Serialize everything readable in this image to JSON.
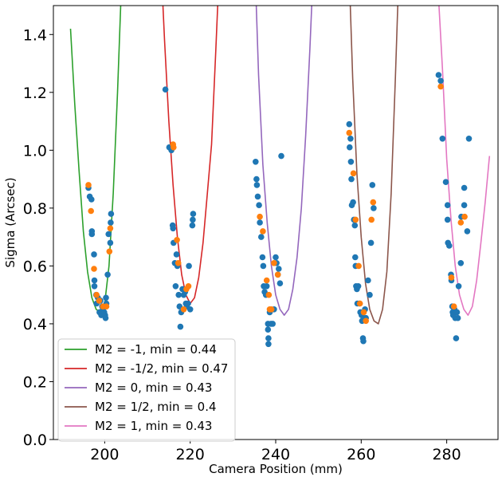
{
  "chart_data": {
    "type": "scatter",
    "title": "",
    "xlabel": "Camera Position (mm)",
    "ylabel": "Sigma (Arcsec)",
    "xlim": [
      188,
      292
    ],
    "ylim": [
      0.0,
      1.5
    ],
    "x_ticks": [
      200,
      220,
      240,
      260,
      280
    ],
    "y_ticks": [
      0.0,
      0.2,
      0.4,
      0.6,
      0.8,
      1.0,
      1.2,
      1.4
    ],
    "x_tick_labels": [
      "200",
      "220",
      "240",
      "260",
      "280"
    ],
    "y_tick_labels": [
      "0.0",
      "0.2",
      "0.4",
      "0.6",
      "0.8",
      "1.0",
      "1.2",
      "1.4"
    ],
    "grid": false,
    "legend_position": "lower-left",
    "fit_series": [
      {
        "name": "M2 = -1, min = 0.44",
        "color": "#2ca02c",
        "x": [
          192.0,
          193.0,
          194.0,
          195.0,
          196.0,
          197.0,
          198.0,
          199.0,
          200.0,
          201.0,
          202.0,
          203.0,
          204.0
        ],
        "y": [
          1.42,
          1.16,
          0.93,
          0.72,
          0.58,
          0.49,
          0.45,
          0.44,
          0.47,
          0.6,
          0.85,
          1.2,
          1.6
        ]
      },
      {
        "name": "M2 = -1/2, min = 0.47",
        "color": "#d62728",
        "x": [
          213.0,
          214.0,
          215.0,
          216.0,
          217.0,
          218.0,
          219.0,
          220.0,
          221.0,
          222.0,
          223.0,
          224.0,
          225.0,
          226.0,
          227.0
        ],
        "y": [
          1.7,
          1.38,
          1.1,
          0.88,
          0.7,
          0.57,
          0.5,
          0.47,
          0.49,
          0.56,
          0.68,
          0.85,
          1.02,
          1.35,
          1.7
        ]
      },
      {
        "name": "M2 = 0, min = 0.43",
        "color": "#9467bd",
        "x": [
          235.0,
          236.0,
          237.0,
          238.0,
          239.0,
          240.0,
          241.0,
          242.0,
          243.0,
          244.0,
          245.0,
          246.0,
          247.0,
          248.0,
          249.0
        ],
        "y": [
          1.7,
          1.26,
          0.95,
          0.75,
          0.6,
          0.5,
          0.45,
          0.43,
          0.45,
          0.52,
          0.63,
          0.8,
          1.05,
          1.35,
          1.7
        ]
      },
      {
        "name": "M2 = 1/2, min = 0.4",
        "color": "#8c564b",
        "x": [
          257.0,
          258.0,
          259.0,
          260.0,
          261.0,
          262.0,
          263.0,
          264.0,
          265.0,
          266.0,
          267.0,
          268.0,
          269.0
        ],
        "y": [
          1.7,
          1.25,
          0.92,
          0.7,
          0.54,
          0.45,
          0.41,
          0.4,
          0.45,
          0.58,
          0.85,
          1.25,
          1.7
        ]
      },
      {
        "name": "M2 = 1, min = 0.43",
        "color": "#e377c2",
        "x": [
          278.0,
          279.0,
          280.0,
          281.0,
          282.0,
          283.0,
          284.0,
          285.0,
          286.0,
          287.0,
          288.0,
          289.0,
          290.0
        ],
        "y": [
          1.55,
          1.28,
          0.97,
          0.76,
          0.6,
          0.5,
          0.45,
          0.43,
          0.46,
          0.55,
          0.68,
          0.82,
          0.98
        ]
      }
    ],
    "scatter_series": [
      {
        "color": "#1f77b4",
        "points": [
          [
            196.2,
            0.87
          ],
          [
            196.5,
            0.84
          ],
          [
            196.9,
            0.83
          ],
          [
            197.0,
            0.72
          ],
          [
            197.0,
            0.71
          ],
          [
            197.5,
            0.64
          ],
          [
            197.6,
            0.55
          ],
          [
            197.6,
            0.53
          ],
          [
            198.0,
            0.5
          ],
          [
            198.1,
            0.47
          ],
          [
            198.4,
            0.49
          ],
          [
            198.8,
            0.44
          ],
          [
            199.0,
            0.48
          ],
          [
            199.2,
            0.43
          ],
          [
            199.4,
            0.46
          ],
          [
            199.6,
            0.45
          ],
          [
            199.9,
            0.44
          ],
          [
            200.1,
            0.43
          ],
          [
            200.2,
            0.42
          ],
          [
            200.3,
            0.49
          ],
          [
            200.4,
            0.47
          ],
          [
            200.7,
            0.57
          ],
          [
            200.9,
            0.71
          ],
          [
            201.3,
            0.68
          ],
          [
            201.4,
            0.75
          ],
          [
            201.5,
            0.78
          ],
          [
            214.2,
            1.21
          ],
          [
            215.1,
            1.01
          ],
          [
            215.6,
            1.0
          ],
          [
            215.9,
            0.74
          ],
          [
            216.0,
            0.73
          ],
          [
            216.1,
            0.68
          ],
          [
            216.4,
            0.61
          ],
          [
            216.6,
            0.53
          ],
          [
            216.8,
            0.64
          ],
          [
            217.0,
            0.6
          ],
          [
            217.3,
            0.5
          ],
          [
            217.5,
            0.46
          ],
          [
            217.7,
            0.39
          ],
          [
            217.9,
            0.44
          ],
          [
            218.2,
            0.52
          ],
          [
            218.5,
            0.5
          ],
          [
            218.8,
            0.51
          ],
          [
            219.0,
            0.47
          ],
          [
            219.2,
            0.46
          ],
          [
            219.5,
            0.47
          ],
          [
            219.7,
            0.6
          ],
          [
            220.0,
            0.45
          ],
          [
            220.5,
            0.74
          ],
          [
            220.7,
            0.78
          ],
          [
            220.6,
            0.76
          ],
          [
            235.3,
            0.96
          ],
          [
            235.5,
            0.9
          ],
          [
            235.6,
            0.88
          ],
          [
            235.8,
            0.84
          ],
          [
            236.1,
            0.81
          ],
          [
            236.3,
            0.75
          ],
          [
            236.6,
            0.7
          ],
          [
            236.9,
            0.63
          ],
          [
            237.1,
            0.6
          ],
          [
            237.2,
            0.53
          ],
          [
            237.4,
            0.51
          ],
          [
            237.7,
            0.5
          ],
          [
            237.9,
            0.53
          ],
          [
            238.2,
            0.4
          ],
          [
            238.2,
            0.38
          ],
          [
            238.3,
            0.35
          ],
          [
            238.3,
            0.33
          ],
          [
            238.6,
            0.44
          ],
          [
            238.9,
            0.4
          ],
          [
            239.3,
            0.4
          ],
          [
            239.6,
            0.45
          ],
          [
            240.0,
            0.63
          ],
          [
            240.2,
            0.61
          ],
          [
            240.5,
            0.57
          ],
          [
            240.7,
            0.59
          ],
          [
            241.0,
            0.54
          ],
          [
            241.3,
            0.98
          ],
          [
            257.2,
            1.09
          ],
          [
            257.3,
            1.01
          ],
          [
            257.5,
            1.04
          ],
          [
            257.6,
            0.96
          ],
          [
            257.7,
            0.9
          ],
          [
            257.8,
            0.81
          ],
          [
            258.1,
            0.82
          ],
          [
            258.3,
            0.76
          ],
          [
            258.5,
            0.74
          ],
          [
            258.6,
            0.63
          ],
          [
            258.7,
            0.6
          ],
          [
            258.8,
            0.53
          ],
          [
            259.0,
            0.52
          ],
          [
            259.1,
            0.47
          ],
          [
            259.3,
            0.53
          ],
          [
            259.6,
            0.47
          ],
          [
            259.8,
            0.44
          ],
          [
            260.1,
            0.43
          ],
          [
            260.2,
            0.41
          ],
          [
            260.4,
            0.35
          ],
          [
            260.5,
            0.34
          ],
          [
            260.9,
            0.45
          ],
          [
            261.1,
            0.42
          ],
          [
            261.6,
            0.55
          ],
          [
            262.0,
            0.5
          ],
          [
            262.3,
            0.68
          ],
          [
            262.6,
            0.88
          ],
          [
            262.9,
            0.8
          ],
          [
            278.1,
            1.26
          ],
          [
            278.6,
            1.24
          ],
          [
            279.0,
            1.04
          ],
          [
            279.8,
            0.89
          ],
          [
            280.2,
            0.81
          ],
          [
            280.2,
            0.76
          ],
          [
            280.3,
            0.68
          ],
          [
            280.6,
            0.67
          ],
          [
            281.0,
            0.57
          ],
          [
            281.1,
            0.55
          ],
          [
            281.3,
            0.46
          ],
          [
            281.4,
            0.44
          ],
          [
            281.5,
            0.43
          ],
          [
            281.8,
            0.45
          ],
          [
            282.0,
            0.42
          ],
          [
            282.2,
            0.35
          ],
          [
            282.4,
            0.44
          ],
          [
            282.6,
            0.42
          ],
          [
            282.8,
            0.53
          ],
          [
            283.3,
            0.61
          ],
          [
            283.4,
            0.77
          ],
          [
            284.1,
            0.87
          ],
          [
            284.1,
            0.81
          ],
          [
            284.8,
            0.72
          ],
          [
            285.2,
            1.04
          ]
        ]
      },
      {
        "color": "#ff7f0e",
        "points": [
          [
            196.2,
            0.88
          ],
          [
            196.8,
            0.79
          ],
          [
            197.5,
            0.59
          ],
          [
            198.1,
            0.5
          ],
          [
            198.7,
            0.48
          ],
          [
            199.6,
            0.46
          ],
          [
            200.4,
            0.46
          ],
          [
            201.1,
            0.65
          ],
          [
            201.3,
            0.73
          ],
          [
            216.0,
            1.02
          ],
          [
            216.1,
            1.01
          ],
          [
            216.9,
            0.69
          ],
          [
            217.2,
            0.61
          ],
          [
            218.5,
            0.45
          ],
          [
            219.1,
            0.52
          ],
          [
            219.6,
            0.53
          ],
          [
            236.3,
            0.77
          ],
          [
            237.0,
            0.72
          ],
          [
            237.9,
            0.55
          ],
          [
            238.4,
            0.5
          ],
          [
            238.6,
            0.45
          ],
          [
            239.0,
            0.45
          ],
          [
            239.6,
            0.61
          ],
          [
            240.5,
            0.57
          ],
          [
            257.2,
            1.06
          ],
          [
            258.2,
            0.92
          ],
          [
            258.7,
            0.76
          ],
          [
            259.4,
            0.6
          ],
          [
            259.7,
            0.47
          ],
          [
            260.6,
            0.44
          ],
          [
            261.1,
            0.41
          ],
          [
            262.4,
            0.76
          ],
          [
            262.8,
            0.82
          ],
          [
            278.6,
            1.22
          ],
          [
            281.1,
            0.56
          ],
          [
            281.7,
            0.46
          ],
          [
            283.3,
            0.75
          ],
          [
            284.2,
            0.77
          ]
        ]
      }
    ]
  }
}
